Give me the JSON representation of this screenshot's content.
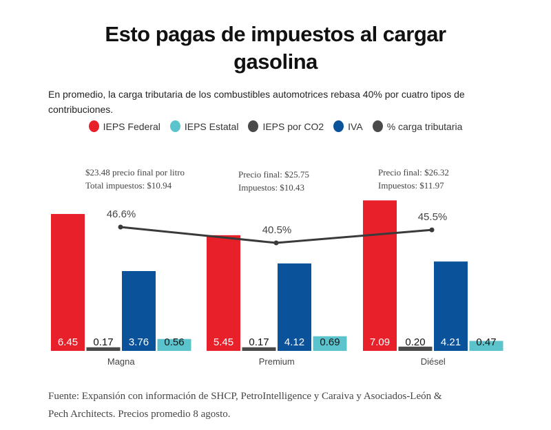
{
  "title": {
    "line1": "Esto pagas de impuestos al cargar",
    "line2": "gasolina"
  },
  "subtitle": "En promedio, la carga tributaria de los combustibles automotrices rebasa 40% por cuatro tipos de contribuciones.",
  "legend": [
    {
      "label": "IEPS Federal",
      "color": "#e8202a"
    },
    {
      "label": "IEPS Estatal",
      "color": "#5bc3cc"
    },
    {
      "label": "IEPS por CO2",
      "color": "#4a4a4a"
    },
    {
      "label": "IVA",
      "color": "#0a5299"
    },
    {
      "label": "% carga tributaria",
      "color": "#4a4a4a"
    }
  ],
  "source": "Fuente: Expansión con información de SHCP, PetroIntelligence y Caraiva y Asociados-León & Pech Architects. Precios promedio 8 agosto.",
  "chart_data": {
    "type": "bar",
    "title": "Esto pagas de impuestos al cargar gasolina",
    "subtitle": "En promedio, la carga tributaria de los combustibles automotrices rebasa 40% por cuatro tipos de contribuciones.",
    "categories": [
      "Magna",
      "Premium",
      "Diésel"
    ],
    "series": [
      {
        "name": "IEPS Federal",
        "color": "#e8202a",
        "values": [
          6.45,
          5.45,
          7.09
        ],
        "label_color": "#ffffff"
      },
      {
        "name": "IEPS por CO2",
        "color": "#4a4a4a",
        "values": [
          0.17,
          0.17,
          0.2
        ],
        "label_color": "#111111"
      },
      {
        "name": "IVA",
        "color": "#0a5299",
        "values": [
          3.76,
          4.12,
          4.21
        ],
        "label_color": "#ffffff"
      },
      {
        "name": "IEPS Estatal",
        "color": "#5bc3cc",
        "values": [
          0.56,
          0.69,
          0.47
        ],
        "label_color": "#111111"
      }
    ],
    "line_series": {
      "name": "% carga tributaria",
      "color": "#3a3a3a",
      "values": [
        46.6,
        40.5,
        45.5
      ],
      "labels": [
        "46.6%",
        "40.5%",
        "45.5%"
      ]
    },
    "annotations": [
      [
        "$23.48 precio final por litro",
        "Total impuestos: $10.94"
      ],
      [
        "Precio final: $25.75",
        "Impuestos: $10.43"
      ],
      [
        "Precio final: $26.32",
        "Impuestos: $11.97"
      ]
    ],
    "xlabel": "",
    "ylabel": "",
    "ylim": [
      0,
      7.5
    ],
    "grid": false,
    "legend_position": "top-center"
  }
}
